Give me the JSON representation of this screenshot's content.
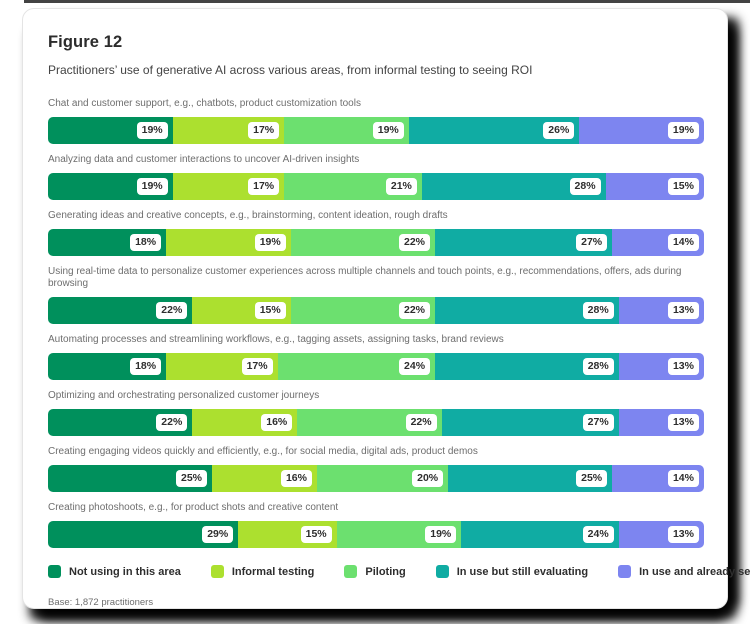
{
  "header": {
    "title": "Figure 12",
    "subtitle": "Practitioners’ use of generative AI across various areas, from informal testing to seeing ROI"
  },
  "chart_data": {
    "type": "bar",
    "orientation": "horizontal-stacked",
    "unit": "%",
    "xlim": [
      0,
      100
    ],
    "grid": false,
    "legend_position": "bottom",
    "series_names": [
      "Not using in this area",
      "Informal testing",
      "Piloting",
      "In use but still evaluating",
      "In use and already seeing ROI"
    ],
    "series_colors": [
      "#00905C",
      "#ACE02F",
      "#6CE06F",
      "#10ACA3",
      "#7D85F0"
    ],
    "rows": [
      {
        "label": "Chat and customer support, e.g., chatbots, product customization tools",
        "values": [
          19,
          17,
          19,
          26,
          19
        ]
      },
      {
        "label": "Analyzing data and customer interactions to uncover AI-driven insights",
        "values": [
          19,
          17,
          21,
          28,
          15
        ]
      },
      {
        "label": "Generating ideas and creative concepts, e.g., brainstorming, content ideation, rough drafts",
        "values": [
          18,
          19,
          22,
          27,
          14
        ]
      },
      {
        "label": "Using real-time data to personalize customer experiences across multiple channels and touch points, e.g., recommendations, offers, ads during browsing",
        "values": [
          22,
          15,
          22,
          28,
          13
        ]
      },
      {
        "label": "Automating processes and streamlining workflows, e.g., tagging assets, assigning tasks, brand reviews",
        "values": [
          18,
          17,
          24,
          28,
          13
        ]
      },
      {
        "label": "Optimizing and orchestrating personalized customer journeys",
        "values": [
          22,
          16,
          22,
          27,
          13
        ]
      },
      {
        "label": "Creating engaging videos quickly and efficiently, e.g., for social media, digital ads, product demos",
        "values": [
          25,
          16,
          20,
          25,
          14
        ]
      },
      {
        "label": "Creating photoshoots, e.g., for product shots and creative content",
        "values": [
          29,
          15,
          19,
          24,
          13
        ]
      }
    ]
  },
  "base_note": "Base: 1,872 practitioners"
}
